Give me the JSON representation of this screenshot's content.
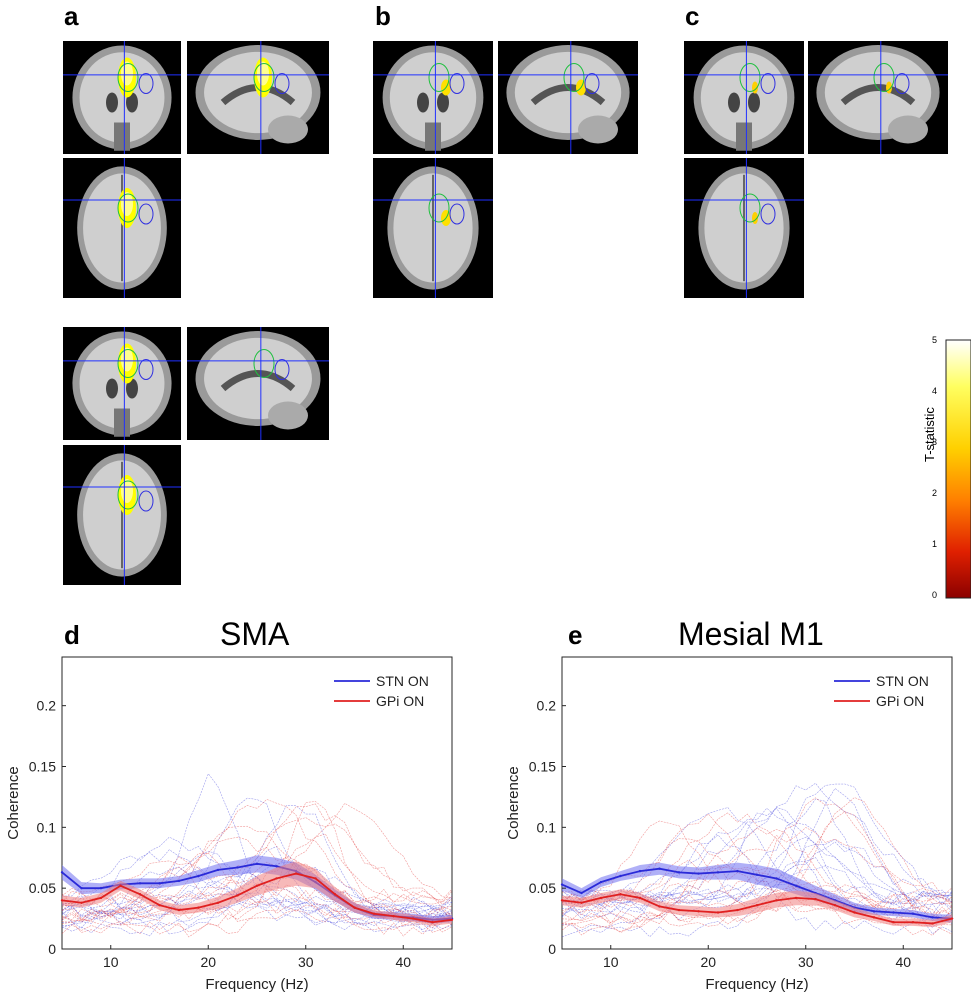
{
  "panels": {
    "a": "a",
    "b": "b",
    "c": "c",
    "d": "d",
    "e": "e"
  },
  "colorbar": {
    "label": "T-statistic",
    "ticks": [
      "5",
      "4",
      "3",
      "2",
      "1",
      "0"
    ],
    "colors": [
      "#ffffff",
      "#ffff40",
      "#ffd000",
      "#ff8000",
      "#e02000",
      "#8b0000"
    ]
  },
  "plot_d": {
    "title": "SMA"
  },
  "plot_e": {
    "title": "Mesial M1"
  },
  "colors": {
    "stn": "#2a2ad8",
    "gpi": "#e02020",
    "stn_band": "#7070f0",
    "gpi_band": "#f08080"
  },
  "chart_data": [
    {
      "type": "line",
      "title": "SMA",
      "xlabel": "Frequency (Hz)",
      "ylabel": "Coherence",
      "xlim": [
        5,
        45
      ],
      "ylim": [
        0,
        0.24
      ],
      "xticks": [
        10,
        20,
        30,
        40
      ],
      "yticks": [
        0,
        0.05,
        0.1,
        0.15,
        0.2
      ],
      "ytick_labels": [
        "0",
        "0.05",
        "0.1",
        "0.15",
        "0.2"
      ],
      "xtick_labels": [
        "10",
        "20",
        "30",
        "40"
      ],
      "legend_position": "top-right",
      "series": [
        {
          "name": "STN ON",
          "x": [
            5,
            7,
            9,
            11,
            13,
            15,
            17,
            19,
            21,
            23,
            25,
            27,
            29,
            31,
            33,
            35,
            37,
            39,
            41,
            43,
            45
          ],
          "values": [
            0.063,
            0.05,
            0.05,
            0.053,
            0.054,
            0.054,
            0.056,
            0.06,
            0.065,
            0.067,
            0.07,
            0.068,
            0.064,
            0.055,
            0.044,
            0.034,
            0.028,
            0.027,
            0.026,
            0.024,
            0.025
          ],
          "band": [
            0.006,
            0.005,
            0.004,
            0.004,
            0.004,
            0.004,
            0.004,
            0.005,
            0.005,
            0.006,
            0.007,
            0.007,
            0.007,
            0.006,
            0.005,
            0.004,
            0.003,
            0.003,
            0.003,
            0.003,
            0.003
          ]
        },
        {
          "name": "GPi ON",
          "x": [
            5,
            7,
            9,
            11,
            13,
            15,
            17,
            19,
            21,
            23,
            25,
            27,
            29,
            31,
            33,
            35,
            37,
            39,
            41,
            43,
            45
          ],
          "values": [
            0.04,
            0.038,
            0.042,
            0.052,
            0.045,
            0.036,
            0.032,
            0.034,
            0.038,
            0.044,
            0.052,
            0.058,
            0.062,
            0.058,
            0.045,
            0.034,
            0.029,
            0.027,
            0.025,
            0.022,
            0.024
          ],
          "band": [
            0.004,
            0.004,
            0.004,
            0.004,
            0.004,
            0.004,
            0.004,
            0.004,
            0.005,
            0.006,
            0.008,
            0.009,
            0.01,
            0.008,
            0.006,
            0.004,
            0.003,
            0.003,
            0.003,
            0.003,
            0.003
          ]
        }
      ]
    },
    {
      "type": "line",
      "title": "Mesial M1",
      "xlabel": "Frequency (Hz)",
      "ylabel": "Coherence",
      "xlim": [
        5,
        45
      ],
      "ylim": [
        0,
        0.24
      ],
      "xticks": [
        10,
        20,
        30,
        40
      ],
      "yticks": [
        0,
        0.05,
        0.1,
        0.15,
        0.2
      ],
      "ytick_labels": [
        "0",
        "0.05",
        "0.1",
        "0.15",
        "0.2"
      ],
      "xtick_labels": [
        "10",
        "20",
        "30",
        "40"
      ],
      "legend_position": "top-right",
      "series": [
        {
          "name": "STN ON",
          "x": [
            5,
            7,
            9,
            11,
            13,
            15,
            17,
            19,
            21,
            23,
            25,
            27,
            29,
            31,
            33,
            35,
            37,
            39,
            41,
            43,
            45
          ],
          "values": [
            0.053,
            0.046,
            0.055,
            0.06,
            0.064,
            0.066,
            0.063,
            0.062,
            0.063,
            0.064,
            0.061,
            0.058,
            0.052,
            0.046,
            0.04,
            0.034,
            0.031,
            0.03,
            0.029,
            0.026,
            0.025
          ],
          "band": [
            0.005,
            0.004,
            0.004,
            0.004,
            0.005,
            0.005,
            0.005,
            0.005,
            0.006,
            0.007,
            0.008,
            0.008,
            0.007,
            0.006,
            0.005,
            0.004,
            0.003,
            0.003,
            0.003,
            0.003,
            0.003
          ]
        },
        {
          "name": "GPi ON",
          "x": [
            5,
            7,
            9,
            11,
            13,
            15,
            17,
            19,
            21,
            23,
            25,
            27,
            29,
            31,
            33,
            35,
            37,
            39,
            41,
            43,
            45
          ],
          "values": [
            0.04,
            0.038,
            0.042,
            0.045,
            0.042,
            0.035,
            0.032,
            0.031,
            0.03,
            0.032,
            0.036,
            0.04,
            0.042,
            0.041,
            0.036,
            0.03,
            0.026,
            0.022,
            0.022,
            0.021,
            0.025
          ],
          "band": [
            0.004,
            0.004,
            0.004,
            0.004,
            0.004,
            0.004,
            0.004,
            0.004,
            0.004,
            0.005,
            0.006,
            0.006,
            0.006,
            0.005,
            0.004,
            0.004,
            0.003,
            0.003,
            0.003,
            0.003,
            0.003
          ]
        }
      ]
    }
  ]
}
